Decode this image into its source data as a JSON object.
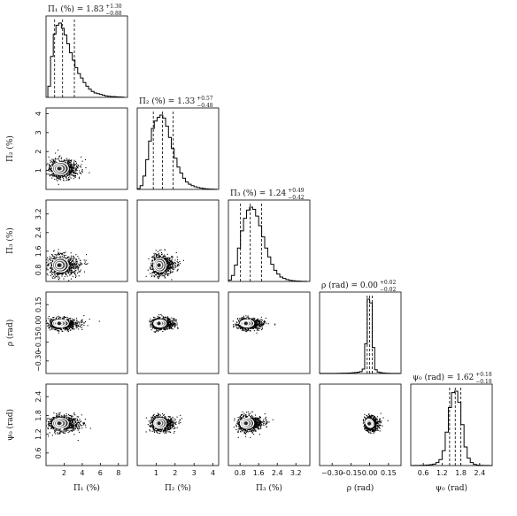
{
  "chart_data": {
    "type": "corner",
    "parameters": [
      {
        "label": "Π₁ (%)",
        "ticks": [
          "2",
          "4",
          "6",
          "8"
        ],
        "tick_values": [
          2,
          4,
          6,
          8
        ],
        "range": [
          0,
          9
        ],
        "title": {
          "text": "Π₁ (%) = 1.83",
          "up": "+1.30",
          "down": "−0.88"
        },
        "median": 1.83,
        "q_low": 0.95,
        "q_high": 3.13
      },
      {
        "label": "Π₂ (%)",
        "ticks": [
          "1",
          "2",
          "3",
          "4"
        ],
        "tick_values": [
          1,
          2,
          3,
          4
        ],
        "range": [
          0,
          4.3
        ],
        "title": {
          "text": "Π₂ (%) = 1.33",
          "up": "+0.57",
          "down": "−0.48"
        },
        "median": 1.33,
        "q_low": 0.85,
        "q_high": 1.9
      },
      {
        "label": "Π₃ (%)",
        "ticks": [
          "0.8",
          "1.6",
          "2.4",
          "3.2"
        ],
        "tick_values": [
          0.8,
          1.6,
          2.4,
          3.2
        ],
        "range": [
          0.3,
          3.8
        ],
        "title": {
          "text": "Π₃ (%) = 1.24",
          "up": "+0.49",
          "down": "−0.42"
        },
        "median": 1.24,
        "q_low": 0.82,
        "q_high": 1.73
      },
      {
        "label": "ρ (rad)",
        "ticks": [
          "−0.30",
          "−0.15",
          "0.00",
          "0.15"
        ],
        "tick_values": [
          -0.3,
          -0.15,
          0.0,
          0.15
        ],
        "range": [
          -0.4,
          0.25
        ],
        "title": {
          "text": "ρ (rad) = 0.00",
          "up": "+0.02",
          "down": "−0.02"
        },
        "median": 0.0,
        "q_low": -0.02,
        "q_high": 0.02
      },
      {
        "label": "ψ₀ (rad)",
        "ticks": [
          "0.6",
          "1.2",
          "1.8",
          "2.4"
        ],
        "tick_values": [
          0.6,
          1.2,
          1.8,
          2.4
        ],
        "range": [
          0.2,
          2.8
        ],
        "title": {
          "text": "ψ₀ (rad) = 1.62",
          "up": "+0.18",
          "down": "−0.18"
        },
        "median": 1.62,
        "q_low": 1.44,
        "q_high": 1.8
      }
    ],
    "row_tick_labels": [
      null,
      [
        "1",
        "2",
        "3",
        "4"
      ],
      [
        "0.8",
        "1.6",
        "2.4",
        "3.2"
      ],
      [
        "−0.30",
        "−0.15",
        "0.00",
        "0.15"
      ],
      [
        "0.6",
        "1.2",
        "1.8",
        "2.4"
      ]
    ],
    "row_tick_values": [
      null,
      [
        1,
        2,
        3,
        4
      ],
      [
        0.8,
        1.6,
        2.4,
        3.2
      ],
      [
        -0.3,
        -0.15,
        0.0,
        0.15
      ],
      [
        0.6,
        1.2,
        1.8,
        2.4
      ]
    ],
    "histograms": [
      {
        "param": "Π₁ (%)",
        "bins": [
          0.2,
          0.5,
          0.8,
          1.1,
          1.4,
          1.7,
          2.0,
          2.3,
          2.6,
          2.9,
          3.2,
          3.5,
          3.8,
          4.1,
          4.4,
          4.7,
          5.0,
          5.3,
          5.6,
          5.9,
          6.2,
          6.5,
          6.8,
          7.1,
          7.4,
          7.7,
          8.0,
          8.3,
          8.6
        ],
        "counts": [
          0.15,
          0.55,
          0.85,
          0.97,
          1.0,
          0.93,
          0.84,
          0.72,
          0.6,
          0.5,
          0.4,
          0.32,
          0.26,
          0.2,
          0.15,
          0.11,
          0.08,
          0.06,
          0.05,
          0.04,
          0.03,
          0.02,
          0.015,
          0.01,
          0.01,
          0.006,
          0.004,
          0.003
        ]
      },
      {
        "param": "Π₂ (%)",
        "bins": [
          0.0,
          0.15,
          0.3,
          0.45,
          0.6,
          0.75,
          0.9,
          1.05,
          1.2,
          1.35,
          1.5,
          1.65,
          1.8,
          1.95,
          2.1,
          2.25,
          2.4,
          2.55,
          2.7,
          2.85,
          3.0,
          3.15,
          3.3,
          3.45,
          3.6,
          3.75,
          3.9,
          4.05,
          4.2
        ],
        "counts": [
          0.01,
          0.05,
          0.18,
          0.4,
          0.65,
          0.82,
          0.92,
          0.97,
          1.0,
          0.96,
          0.85,
          0.7,
          0.55,
          0.42,
          0.3,
          0.22,
          0.15,
          0.1,
          0.07,
          0.05,
          0.035,
          0.025,
          0.018,
          0.012,
          0.008,
          0.005,
          0.003,
          0.002
        ]
      },
      {
        "param": "Π₃ (%)",
        "bins": [
          0.3,
          0.43,
          0.56,
          0.69,
          0.82,
          0.95,
          1.08,
          1.21,
          1.34,
          1.47,
          1.6,
          1.73,
          1.86,
          1.99,
          2.12,
          2.25,
          2.38,
          2.51,
          2.64,
          2.77,
          2.9,
          3.03,
          3.16,
          3.29,
          3.42,
          3.55,
          3.68
        ],
        "counts": [
          0.02,
          0.08,
          0.22,
          0.45,
          0.68,
          0.85,
          0.96,
          1.0,
          0.97,
          0.88,
          0.75,
          0.6,
          0.45,
          0.33,
          0.23,
          0.15,
          0.1,
          0.06,
          0.04,
          0.025,
          0.015,
          0.01,
          0.006,
          0.004,
          0.002,
          0.001
        ]
      },
      {
        "param": "ρ (rad)",
        "bins": [
          -0.4,
          -0.38,
          -0.36,
          -0.34,
          -0.32,
          -0.3,
          -0.28,
          -0.26,
          -0.24,
          -0.22,
          -0.2,
          -0.18,
          -0.16,
          -0.14,
          -0.12,
          -0.1,
          -0.08,
          -0.06,
          -0.04,
          -0.02,
          0.0,
          0.02,
          0.04,
          0.06,
          0.08,
          0.1,
          0.12,
          0.14,
          0.16,
          0.18,
          0.2,
          0.22,
          0.24
        ],
        "counts": [
          0.001,
          0.001,
          0.001,
          0.001,
          0.002,
          0.002,
          0.002,
          0.003,
          0.003,
          0.004,
          0.005,
          0.006,
          0.008,
          0.01,
          0.013,
          0.018,
          0.025,
          0.06,
          0.4,
          1.0,
          0.95,
          0.35,
          0.05,
          0.02,
          0.012,
          0.008,
          0.005,
          0.003,
          0.002,
          0.001,
          0.001,
          0.001
        ]
      },
      {
        "param": "ψ₀ (rad)",
        "bins": [
          0.2,
          0.3,
          0.4,
          0.5,
          0.6,
          0.7,
          0.8,
          0.9,
          1.0,
          1.1,
          1.2,
          1.3,
          1.4,
          1.5,
          1.6,
          1.7,
          1.8,
          1.9,
          2.0,
          2.1,
          2.2,
          2.3,
          2.4,
          2.5,
          2.6,
          2.7,
          2.8
        ],
        "counts": [
          0.0,
          0.001,
          0.002,
          0.003,
          0.005,
          0.008,
          0.012,
          0.02,
          0.04,
          0.08,
          0.2,
          0.45,
          0.78,
          0.98,
          1.0,
          0.85,
          0.55,
          0.25,
          0.1,
          0.04,
          0.015,
          0.006,
          0.003,
          0.001,
          0.001,
          0.0
        ]
      }
    ],
    "scatter_shapes": {
      "note": "",
      "pairs": [
        {
          "row": 1,
          "col": 0,
          "center": [
            1.6,
            1.1
          ],
          "spread": [
            2.4,
            0.9
          ]
        },
        {
          "row": 2,
          "col": 0,
          "center": [
            1.6,
            1.0
          ],
          "spread": [
            2.4,
            0.8
          ]
        },
        {
          "row": 2,
          "col": 1,
          "center": [
            1.2,
            1.0
          ],
          "spread": [
            0.9,
            0.8
          ]
        },
        {
          "row": 3,
          "col": 0,
          "center": [
            1.6,
            0.0
          ],
          "spread": [
            2.4,
            0.08
          ]
        },
        {
          "row": 3,
          "col": 1,
          "center": [
            1.2,
            0.0
          ],
          "spread": [
            0.9,
            0.08
          ]
        },
        {
          "row": 3,
          "col": 2,
          "center": [
            1.1,
            0.0
          ],
          "spread": [
            0.8,
            0.08
          ]
        },
        {
          "row": 4,
          "col": 0,
          "center": [
            1.6,
            1.55
          ],
          "spread": [
            2.4,
            0.45
          ]
        },
        {
          "row": 4,
          "col": 1,
          "center": [
            1.2,
            1.55
          ],
          "spread": [
            0.9,
            0.45
          ]
        },
        {
          "row": 4,
          "col": 2,
          "center": [
            1.1,
            1.55
          ],
          "spread": [
            0.8,
            0.45
          ]
        },
        {
          "row": 4,
          "col": 3,
          "center": [
            0.0,
            1.55
          ],
          "spread": [
            0.08,
            0.4
          ]
        }
      ]
    },
    "grid": false,
    "legend": "none"
  }
}
